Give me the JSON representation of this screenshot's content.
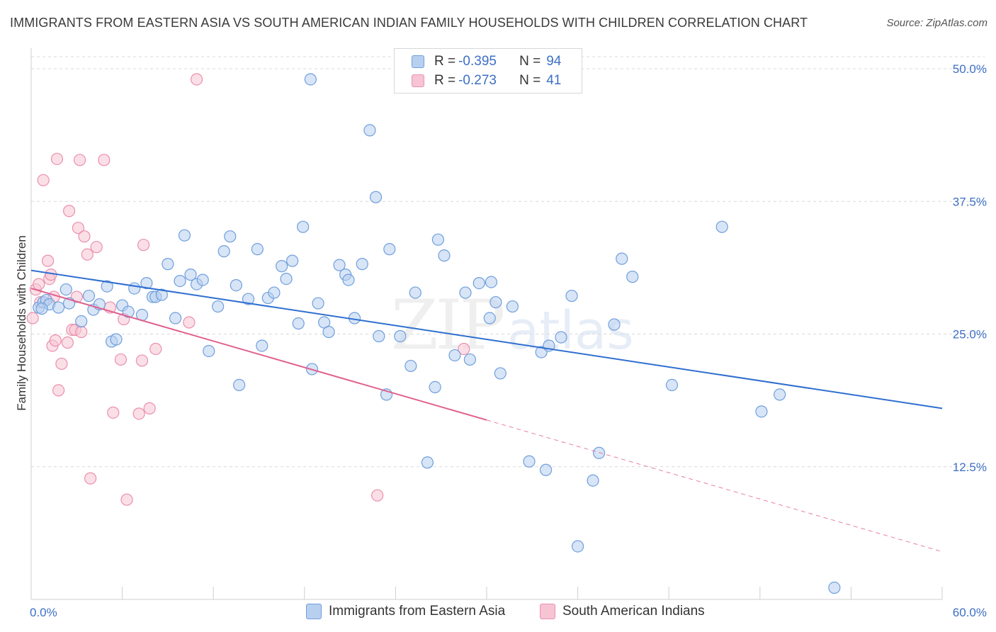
{
  "header": {
    "title": "IMMIGRANTS FROM EASTERN ASIA VS SOUTH AMERICAN INDIAN FAMILY HOUSEHOLDS WITH CHILDREN CORRELATION CHART",
    "source": "Source: ZipAtlas.com"
  },
  "legend": {
    "rows": [
      {
        "r_label": "R = ",
        "r_value": "-0.395",
        "n_label": "N = ",
        "n_value": "94"
      },
      {
        "r_label": "R = ",
        "r_value": "-0.273",
        "n_label": "N = ",
        "n_value": "41"
      }
    ]
  },
  "watermark": {
    "zip": "ZIP",
    "atlas": "atlas"
  },
  "colors": {
    "blue_fill": "#b8d0f0",
    "blue_stroke": "#6f9fdc",
    "blue_line": "#2f6fd0",
    "pink_fill": "#f7c4d4",
    "pink_stroke": "#ea8fae",
    "pink_line": "#e0608e",
    "tick_text": "#3d6fc4",
    "grid": "#d9d9d9"
  },
  "chart_data": {
    "type": "scatter",
    "title": "IMMIGRANTS FROM EASTERN ASIA VS SOUTH AMERICAN INDIAN FAMILY HOUSEHOLDS WITH CHILDREN CORRELATION CHART",
    "xlabel": "",
    "ylabel": "Family Households with Children",
    "xlim": [
      0,
      60
    ],
    "ylim": [
      0,
      50
    ],
    "x_tick_labels": [
      "0.0%",
      "60.0%"
    ],
    "y_tick_values": [
      12.5,
      25.0,
      37.5,
      50.0
    ],
    "y_tick_labels": [
      "12.5%",
      "25.0%",
      "37.5%",
      "50.0%"
    ],
    "grid": true,
    "legend_position": "top-center",
    "series": [
      {
        "name": "Immigrants from Eastern Asia",
        "color": "#6f9fdc",
        "trend": {
          "x": [
            0,
            60
          ],
          "y": [
            31.0,
            18.0
          ],
          "dashed_from": null
        },
        "points": [
          [
            0.5,
            27.5
          ],
          [
            0.8,
            28.0
          ],
          [
            1.0,
            28.2
          ],
          [
            1.2,
            27.8
          ],
          [
            1.8,
            27.5
          ],
          [
            2.3,
            29.2
          ],
          [
            2.5,
            27.9
          ],
          [
            3.3,
            26.2
          ],
          [
            3.8,
            28.6
          ],
          [
            4.1,
            27.3
          ],
          [
            4.5,
            27.8
          ],
          [
            5.0,
            29.5
          ],
          [
            5.3,
            24.3
          ],
          [
            5.6,
            24.5
          ],
          [
            6.0,
            27.7
          ],
          [
            6.4,
            27.1
          ],
          [
            6.8,
            29.3
          ],
          [
            7.3,
            26.8
          ],
          [
            7.6,
            29.8
          ],
          [
            8.0,
            28.5
          ],
          [
            8.2,
            28.5
          ],
          [
            8.6,
            28.7
          ],
          [
            9.0,
            31.6
          ],
          [
            9.5,
            26.5
          ],
          [
            9.8,
            30.0
          ],
          [
            10.1,
            34.3
          ],
          [
            10.5,
            30.6
          ],
          [
            10.9,
            29.7
          ],
          [
            11.3,
            30.1
          ],
          [
            11.7,
            23.4
          ],
          [
            12.3,
            27.6
          ],
          [
            12.7,
            32.8
          ],
          [
            13.1,
            34.2
          ],
          [
            13.5,
            29.6
          ],
          [
            13.7,
            20.2
          ],
          [
            14.3,
            28.3
          ],
          [
            14.9,
            33.0
          ],
          [
            15.2,
            23.9
          ],
          [
            15.6,
            28.4
          ],
          [
            16.0,
            28.9
          ],
          [
            16.5,
            31.4
          ],
          [
            16.8,
            30.2
          ],
          [
            17.2,
            31.9
          ],
          [
            17.6,
            26.0
          ],
          [
            17.9,
            35.1
          ],
          [
            18.4,
            49.0
          ],
          [
            18.5,
            21.7
          ],
          [
            18.9,
            27.9
          ],
          [
            19.3,
            26.1
          ],
          [
            19.6,
            25.2
          ],
          [
            20.3,
            31.5
          ],
          [
            20.7,
            30.6
          ],
          [
            20.9,
            30.1
          ],
          [
            21.3,
            26.5
          ],
          [
            21.8,
            31.6
          ],
          [
            22.3,
            44.2
          ],
          [
            22.7,
            37.9
          ],
          [
            22.9,
            24.8
          ],
          [
            23.4,
            19.3
          ],
          [
            23.6,
            33.0
          ],
          [
            24.3,
            24.8
          ],
          [
            25.0,
            22.0
          ],
          [
            25.3,
            28.9
          ],
          [
            26.1,
            12.9
          ],
          [
            26.6,
            20.0
          ],
          [
            26.8,
            33.9
          ],
          [
            27.2,
            32.4
          ],
          [
            27.9,
            23.0
          ],
          [
            28.6,
            28.9
          ],
          [
            28.9,
            22.6
          ],
          [
            29.5,
            29.8
          ],
          [
            30.2,
            26.5
          ],
          [
            30.3,
            29.9
          ],
          [
            30.6,
            28.0
          ],
          [
            30.9,
            21.3
          ],
          [
            31.7,
            27.6
          ],
          [
            32.8,
            13.0
          ],
          [
            33.6,
            23.3
          ],
          [
            33.9,
            12.2
          ],
          [
            34.1,
            23.9
          ],
          [
            34.9,
            24.7
          ],
          [
            35.6,
            28.6
          ],
          [
            36.0,
            5.0
          ],
          [
            37.0,
            11.2
          ],
          [
            37.4,
            13.8
          ],
          [
            38.4,
            25.9
          ],
          [
            38.9,
            32.1
          ],
          [
            39.6,
            30.4
          ],
          [
            42.2,
            20.2
          ],
          [
            45.5,
            35.1
          ],
          [
            48.1,
            17.7
          ],
          [
            49.3,
            19.3
          ],
          [
            52.9,
            1.1
          ],
          [
            0.7,
            27.4
          ]
        ]
      },
      {
        "name": "South American Indians",
        "color": "#ea8fae",
        "trend": {
          "x": [
            0,
            60
          ],
          "y": [
            29.3,
            4.5
          ],
          "dashed_from": 30.0
        },
        "points": [
          [
            0.1,
            26.5
          ],
          [
            0.3,
            29.2
          ],
          [
            0.5,
            29.7
          ],
          [
            0.6,
            28.0
          ],
          [
            0.8,
            39.5
          ],
          [
            1.1,
            31.9
          ],
          [
            1.2,
            30.2
          ],
          [
            1.4,
            23.9
          ],
          [
            1.5,
            28.5
          ],
          [
            1.6,
            24.4
          ],
          [
            1.7,
            41.5
          ],
          [
            1.8,
            19.7
          ],
          [
            2.0,
            22.2
          ],
          [
            2.4,
            24.2
          ],
          [
            2.5,
            36.6
          ],
          [
            2.7,
            25.4
          ],
          [
            2.9,
            25.4
          ],
          [
            3.1,
            35.0
          ],
          [
            3.2,
            41.4
          ],
          [
            3.3,
            25.2
          ],
          [
            3.5,
            34.2
          ],
          [
            3.7,
            32.5
          ],
          [
            3.9,
            11.4
          ],
          [
            4.3,
            33.2
          ],
          [
            4.8,
            41.4
          ],
          [
            5.2,
            27.5
          ],
          [
            5.4,
            17.6
          ],
          [
            5.9,
            22.6
          ],
          [
            6.1,
            26.4
          ],
          [
            6.3,
            9.4
          ],
          [
            7.1,
            17.5
          ],
          [
            7.3,
            22.5
          ],
          [
            7.4,
            33.4
          ],
          [
            7.8,
            18.0
          ],
          [
            8.2,
            23.6
          ],
          [
            10.4,
            26.1
          ],
          [
            10.9,
            49.0
          ],
          [
            22.8,
            9.8
          ],
          [
            28.5,
            23.6
          ],
          [
            3.0,
            28.5
          ],
          [
            1.3,
            30.6
          ]
        ]
      }
    ]
  },
  "bottom_legend": {
    "items": [
      {
        "label": "Immigrants from Eastern Asia"
      },
      {
        "label": "South American Indians"
      }
    ]
  }
}
